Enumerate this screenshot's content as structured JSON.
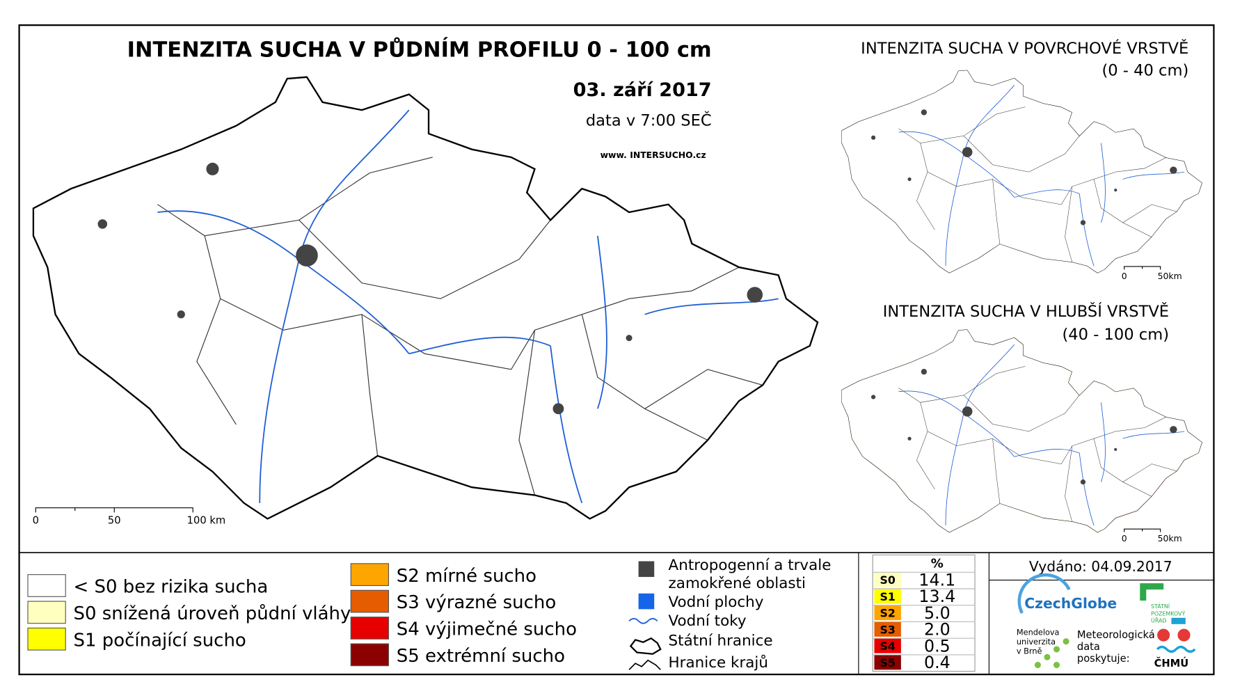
{
  "title": "INTENZITA SUCHA V PŮDNÍM PROFILU 0 - 100 cm",
  "date": "03. září 2017",
  "data_time": "data v 7:00 SEČ",
  "website": "www. INTERSUCHO.cz",
  "main_scale": [
    "0",
    "50",
    "100 km"
  ],
  "inset_surface": {
    "title": "INTENZITA SUCHA V POVRCHOVÉ VRSTVĚ",
    "subtitle": "(0 - 40 cm)",
    "scale": [
      "0",
      "50km"
    ]
  },
  "inset_deep": {
    "title": "INTENZITA SUCHA V HLUBŠÍ VRSTVĚ",
    "subtitle": "(40 - 100 cm)",
    "scale": [
      "0",
      "50km"
    ]
  },
  "legend": {
    "classes": [
      {
        "label": "< S0 bez rizika sucha",
        "color": "#ffffff"
      },
      {
        "label": "S0 snížená úroveň půdní vláhy",
        "color": "#ffffc0"
      },
      {
        "label": "S1 počínající sucho",
        "color": "#ffff00"
      },
      {
        "label": "S2 mírné sucho",
        "color": "#ffa500"
      },
      {
        "label": "S3 výrazné sucho",
        "color": "#e65c00"
      },
      {
        "label": "S4 výjimečné sucho",
        "color": "#e60000"
      },
      {
        "label": "S5 extrémní sucho",
        "color": "#8b0000"
      }
    ],
    "other": [
      "Antropogenní a trvale",
      "zamokřené oblasti",
      "Vodní plochy",
      "Vodní toky",
      "Státní hranice",
      "Hranice krajů"
    ]
  },
  "stats_table": {
    "header": "%",
    "rows": [
      [
        "S0",
        "14.1"
      ],
      [
        "S1",
        "13.4"
      ],
      [
        "S2",
        "5.0"
      ],
      [
        "S3",
        "2.0"
      ],
      [
        "S4",
        "0.5"
      ],
      [
        "S5",
        "0.4"
      ]
    ]
  },
  "issued": "Vydáno: 04.09.2017",
  "logos": {
    "czechglobe": "CzechGlobe",
    "mendelu": [
      "Mendelova",
      "univerzita",
      "v Brně"
    ],
    "chmu_note": [
      "Meteorologická",
      "data",
      "poskytuje:"
    ],
    "chmu": "ČHMÚ",
    "spu": [
      "STÁTNÍ",
      "POZEMKOVÝ",
      "ÚŘAD"
    ]
  }
}
